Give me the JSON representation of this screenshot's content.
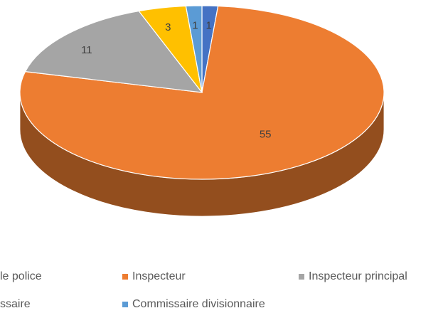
{
  "chart_data": {
    "type": "pie3d",
    "categories": [
      "le police",
      "Inspecteur",
      "Inspecteur principal",
      "ssaire",
      "Commissaire divisionnaire"
    ],
    "values": [
      1,
      55,
      11,
      3,
      1
    ],
    "colors": [
      "#4472c4",
      "#ed7d31",
      "#a5a5a5",
      "#ffc000",
      "#5b9bd5"
    ]
  }
}
